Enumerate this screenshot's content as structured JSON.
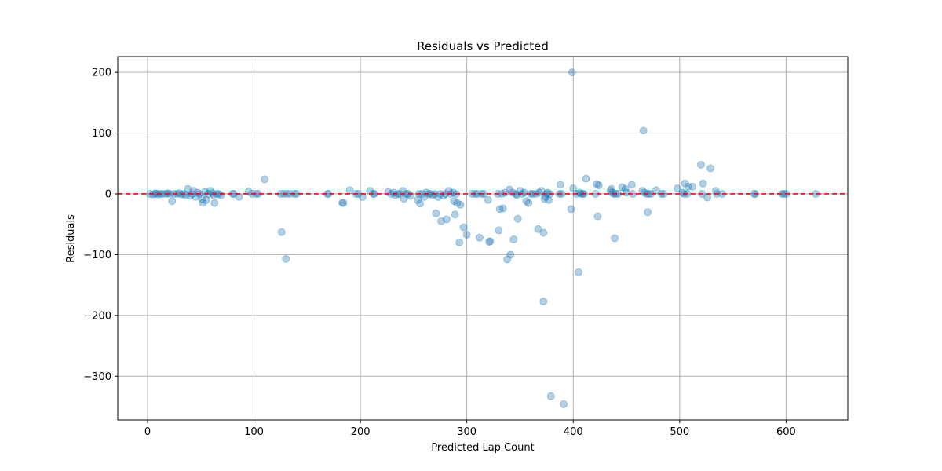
{
  "chart_data": {
    "type": "scatter",
    "title": "Residuals vs Predicted",
    "xlabel": "Predicted Lap Count",
    "ylabel": "Residuals",
    "xlim": [
      -28,
      658
    ],
    "ylim": [
      -372,
      226
    ],
    "xticks": [
      0,
      100,
      200,
      300,
      400,
      500,
      600
    ],
    "yticks": [
      -300,
      -200,
      -100,
      0,
      100,
      200
    ],
    "xtick_labels": [
      "0",
      "100",
      "200",
      "300",
      "400",
      "500",
      "600"
    ],
    "ytick_labels": [
      "−300",
      "−200",
      "−100",
      "0",
      "100",
      "200"
    ],
    "grid": true,
    "reference_line": {
      "y": 0,
      "color": "#ff0000",
      "style": "dashed"
    },
    "point_color": "#1f77b4",
    "point_alpha": 0.35,
    "points": [
      [
        2,
        0
      ],
      [
        5,
        -1
      ],
      [
        7,
        0
      ],
      [
        8,
        1
      ],
      [
        10,
        -1
      ],
      [
        12,
        0
      ],
      [
        14,
        0
      ],
      [
        17,
        0
      ],
      [
        19,
        1
      ],
      [
        21,
        0
      ],
      [
        23,
        -12
      ],
      [
        25,
        0
      ],
      [
        28,
        0
      ],
      [
        30,
        1
      ],
      [
        32,
        -1
      ],
      [
        34,
        0
      ],
      [
        36,
        -2
      ],
      [
        38,
        8
      ],
      [
        40,
        -3
      ],
      [
        42,
        0
      ],
      [
        43,
        5
      ],
      [
        45,
        -5
      ],
      [
        47,
        2
      ],
      [
        49,
        0
      ],
      [
        51,
        -8
      ],
      [
        52,
        -15
      ],
      [
        54,
        3
      ],
      [
        55,
        -10
      ],
      [
        57,
        0
      ],
      [
        59,
        5
      ],
      [
        61,
        1
      ],
      [
        62,
        -2
      ],
      [
        63,
        -15
      ],
      [
        65,
        0
      ],
      [
        67,
        0
      ],
      [
        69,
        -2
      ],
      [
        80,
        0
      ],
      [
        81,
        0
      ],
      [
        86,
        -5
      ],
      [
        95,
        4
      ],
      [
        98,
        0
      ],
      [
        102,
        0
      ],
      [
        104,
        0
      ],
      [
        110,
        24
      ],
      [
        125,
        0
      ],
      [
        126,
        -63
      ],
      [
        128,
        0
      ],
      [
        130,
        -107
      ],
      [
        131,
        0
      ],
      [
        134,
        0
      ],
      [
        138,
        0
      ],
      [
        140,
        0
      ],
      [
        169,
        0
      ],
      [
        170,
        0
      ],
      [
        183,
        -15
      ],
      [
        184,
        -15
      ],
      [
        190,
        6
      ],
      [
        196,
        0
      ],
      [
        198,
        0
      ],
      [
        202,
        -5
      ],
      [
        209,
        5
      ],
      [
        212,
        0
      ],
      [
        213,
        0
      ],
      [
        226,
        3
      ],
      [
        229,
        0
      ],
      [
        231,
        2
      ],
      [
        233,
        -2
      ],
      [
        235,
        0
      ],
      [
        237,
        0
      ],
      [
        240,
        5
      ],
      [
        241,
        -8
      ],
      [
        243,
        0
      ],
      [
        245,
        0
      ],
      [
        247,
        -3
      ],
      [
        254,
        -10
      ],
      [
        255,
        0
      ],
      [
        256,
        -16
      ],
      [
        258,
        0
      ],
      [
        260,
        -5
      ],
      [
        262,
        2
      ],
      [
        264,
        0
      ],
      [
        266,
        0
      ],
      [
        268,
        -2
      ],
      [
        270,
        0
      ],
      [
        271,
        -32
      ],
      [
        273,
        -5
      ],
      [
        275,
        0
      ],
      [
        276,
        -45
      ],
      [
        278,
        -3
      ],
      [
        280,
        0
      ],
      [
        281,
        -42
      ],
      [
        283,
        5
      ],
      [
        285,
        0
      ],
      [
        287,
        2
      ],
      [
        288,
        -12
      ],
      [
        289,
        -34
      ],
      [
        290,
        0
      ],
      [
        291,
        -15
      ],
      [
        293,
        -80
      ],
      [
        294,
        -18
      ],
      [
        297,
        -55
      ],
      [
        300,
        -67
      ],
      [
        305,
        0
      ],
      [
        308,
        0
      ],
      [
        310,
        0
      ],
      [
        312,
        -72
      ],
      [
        314,
        0
      ],
      [
        316,
        0
      ],
      [
        320,
        -10
      ],
      [
        321,
        -79
      ],
      [
        322,
        -78
      ],
      [
        329,
        0
      ],
      [
        330,
        -60
      ],
      [
        331,
        -25
      ],
      [
        333,
        0
      ],
      [
        334,
        -24
      ],
      [
        336,
        2
      ],
      [
        338,
        -108
      ],
      [
        340,
        7
      ],
      [
        341,
        -100
      ],
      [
        343,
        2
      ],
      [
        344,
        -75
      ],
      [
        346,
        0
      ],
      [
        347,
        -2
      ],
      [
        348,
        -41
      ],
      [
        350,
        5
      ],
      [
        352,
        0
      ],
      [
        354,
        2
      ],
      [
        356,
        -12
      ],
      [
        358,
        -15
      ],
      [
        360,
        0
      ],
      [
        362,
        0
      ],
      [
        365,
        0
      ],
      [
        367,
        -58
      ],
      [
        368,
        2
      ],
      [
        370,
        5
      ],
      [
        372,
        -64
      ],
      [
        372,
        -177
      ],
      [
        373,
        -8
      ],
      [
        374,
        -5
      ],
      [
        375,
        0
      ],
      [
        376,
        2
      ],
      [
        377,
        -10
      ],
      [
        378,
        0
      ],
      [
        379,
        -333
      ],
      [
        387,
        0
      ],
      [
        388,
        15
      ],
      [
        389,
        0
      ],
      [
        391,
        -346
      ],
      [
        398,
        -25
      ],
      [
        399,
        200
      ],
      [
        400,
        9
      ],
      [
        403,
        0
      ],
      [
        405,
        -129
      ],
      [
        406,
        2
      ],
      [
        407,
        0
      ],
      [
        409,
        0
      ],
      [
        410,
        0
      ],
      [
        412,
        25
      ],
      [
        421,
        0
      ],
      [
        422,
        16
      ],
      [
        423,
        -37
      ],
      [
        424,
        14
      ],
      [
        435,
        5
      ],
      [
        436,
        8
      ],
      [
        437,
        2
      ],
      [
        438,
        0
      ],
      [
        439,
        -73
      ],
      [
        440,
        0
      ],
      [
        442,
        0
      ],
      [
        446,
        11
      ],
      [
        449,
        8
      ],
      [
        450,
        2
      ],
      [
        455,
        15
      ],
      [
        456,
        0
      ],
      [
        465,
        5
      ],
      [
        466,
        104
      ],
      [
        467,
        2
      ],
      [
        469,
        0
      ],
      [
        470,
        -30
      ],
      [
        471,
        0
      ],
      [
        473,
        0
      ],
      [
        478,
        6
      ],
      [
        483,
        0
      ],
      [
        485,
        0
      ],
      [
        498,
        9
      ],
      [
        503,
        2
      ],
      [
        504,
        0
      ],
      [
        505,
        17
      ],
      [
        507,
        0
      ],
      [
        508,
        12
      ],
      [
        512,
        12
      ],
      [
        520,
        48
      ],
      [
        521,
        0
      ],
      [
        522,
        17
      ],
      [
        526,
        -6
      ],
      [
        529,
        42
      ],
      [
        534,
        5
      ],
      [
        535,
        0
      ],
      [
        540,
        0
      ],
      [
        570,
        0
      ],
      [
        571,
        0
      ],
      [
        596,
        0
      ],
      [
        598,
        0
      ],
      [
        600,
        0
      ],
      [
        628,
        0
      ]
    ]
  }
}
